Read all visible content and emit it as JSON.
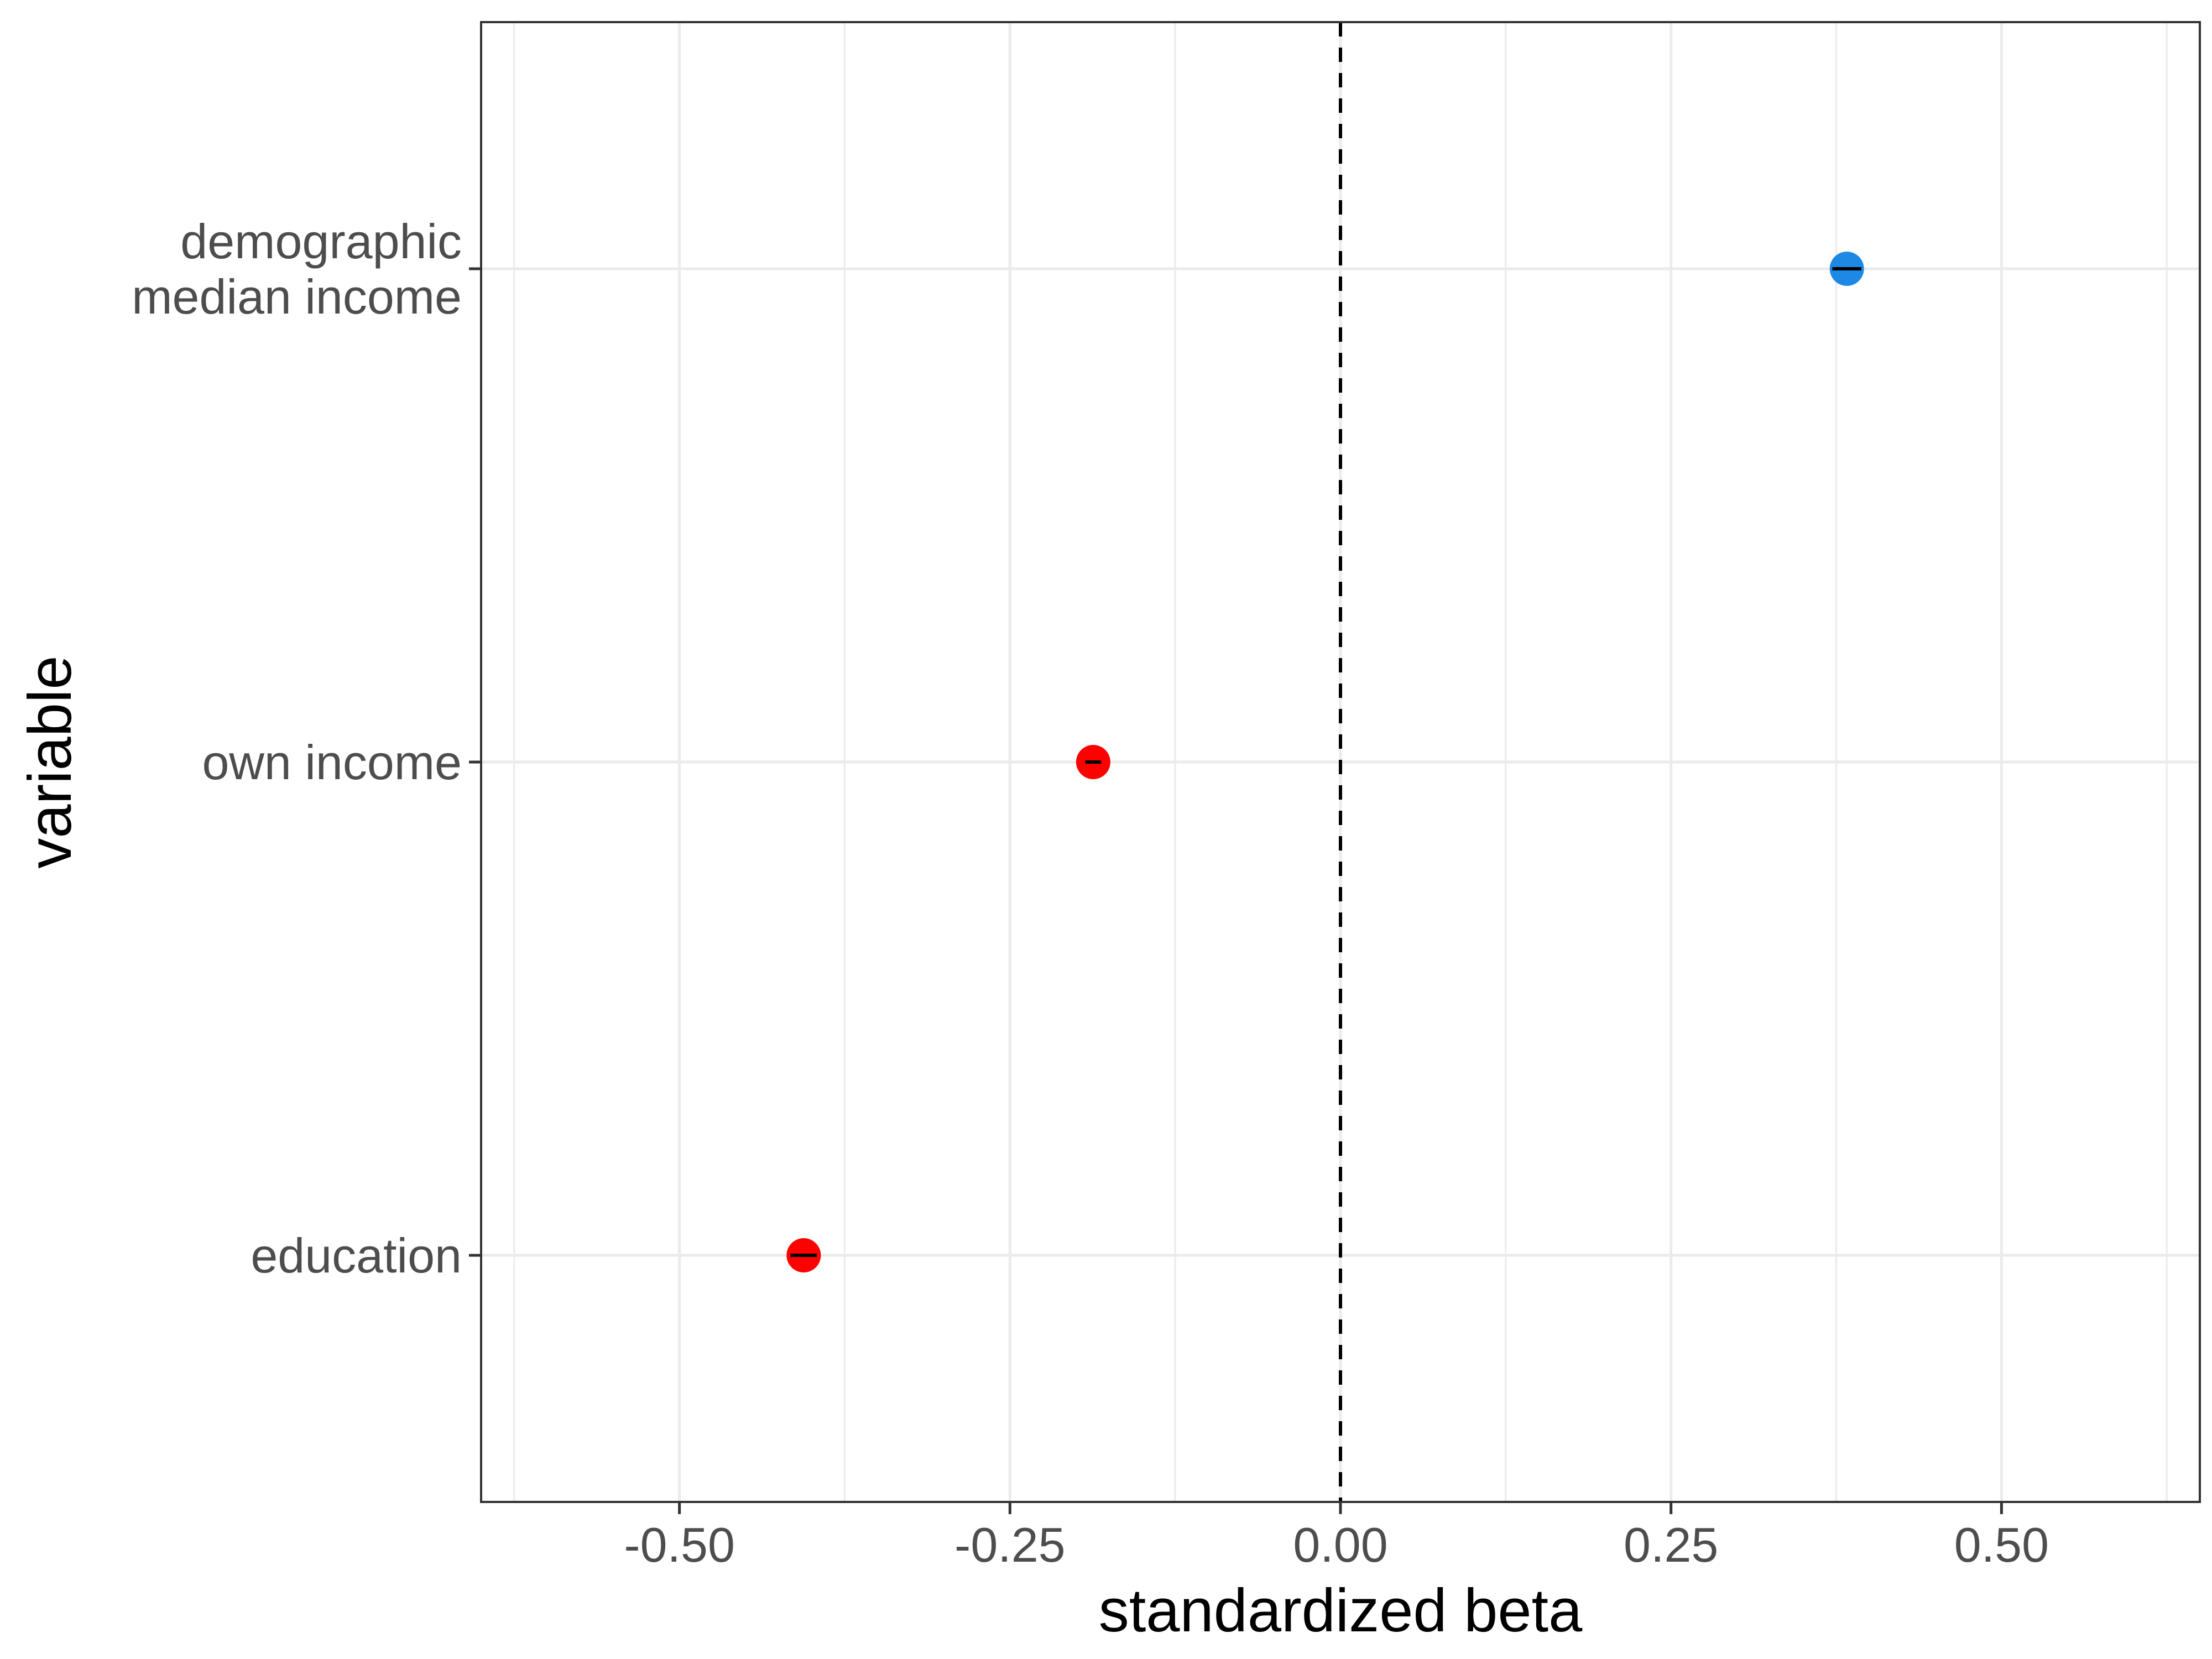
{
  "chart_data": {
    "type": "scatter",
    "xlabel": "standardized beta",
    "ylabel": "variable",
    "xlim": [
      -0.65,
      0.65
    ],
    "x_ticks": [
      -0.5,
      -0.25,
      0.0,
      0.25,
      0.5
    ],
    "x_tick_labels": [
      "-0.50",
      "-0.25",
      "0.00",
      "0.25",
      "0.50"
    ],
    "categories": [
      {
        "lines": [
          "demographic",
          "median income"
        ]
      },
      {
        "lines": [
          "own income"
        ]
      },
      {
        "lines": [
          "education"
        ]
      }
    ],
    "points": [
      {
        "category_index": 0,
        "x": 0.383,
        "ci_low": 0.372,
        "ci_high": 0.394,
        "color": "#1E88E5"
      },
      {
        "category_index": 1,
        "x": -0.187,
        "ci_low": -0.193,
        "ci_high": -0.181,
        "color": "#FF0000"
      },
      {
        "category_index": 2,
        "x": -0.406,
        "ci_low": -0.416,
        "ci_high": -0.396,
        "color": "#FF0000"
      }
    ],
    "reference_line": {
      "x": 0,
      "style": "dashed",
      "color": "#000000"
    },
    "grid": true,
    "legend": "none",
    "colors": {
      "positive": "#1E88E5",
      "negative": "#FF0000",
      "grid": "#EBEBEB",
      "panel_border": "#333333"
    }
  }
}
